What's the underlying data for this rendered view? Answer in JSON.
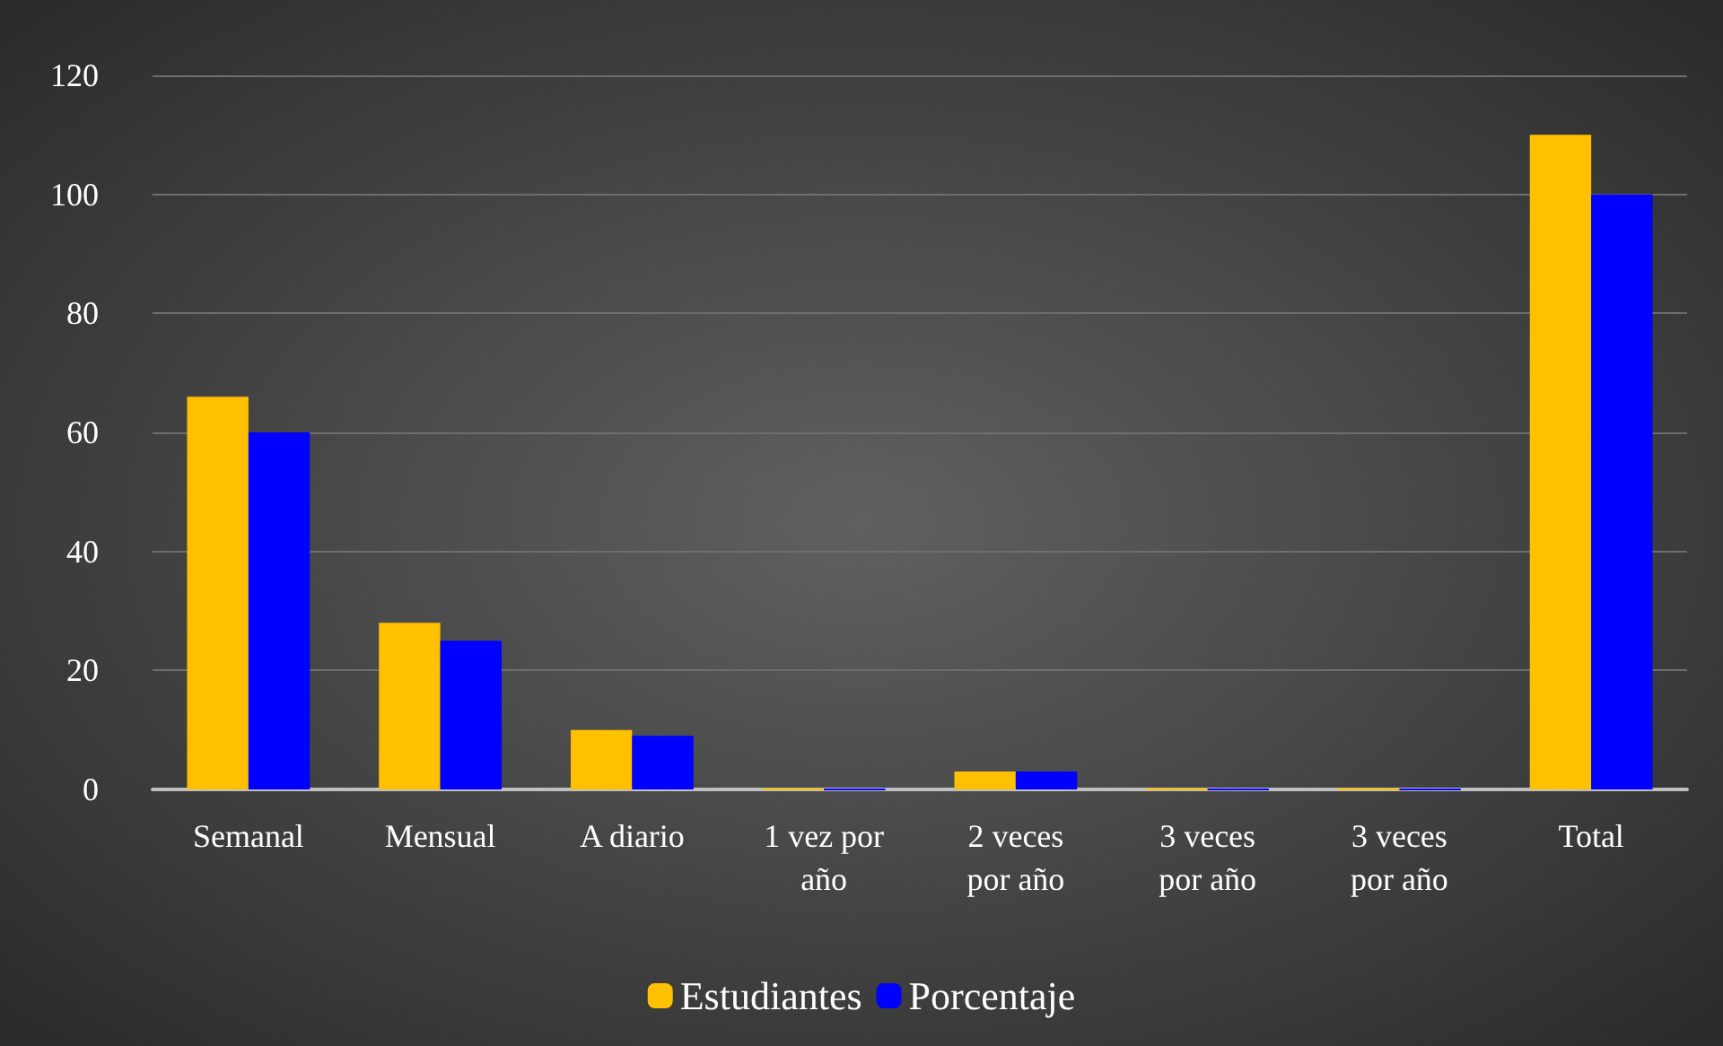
{
  "chart_data": {
    "type": "bar",
    "categories": [
      "Semanal",
      "Mensual",
      "A diario",
      "1 vez por\naño",
      "2 veces\npor año",
      "3 veces\npor año",
      "3 veces\npor año",
      "Total"
    ],
    "series": [
      {
        "name": "Estudiantes",
        "color": "#ffc000",
        "values": [
          66,
          28,
          10,
          0,
          3,
          0,
          0,
          110
        ]
      },
      {
        "name": "Porcentaje",
        "color": "#0000ff",
        "values": [
          60,
          25,
          9,
          0,
          3,
          0,
          0,
          100
        ]
      }
    ],
    "ylim": [
      0,
      120
    ],
    "yticks": [
      0,
      20,
      40,
      60,
      80,
      100,
      120
    ],
    "grid": "y",
    "legend": "bottom"
  }
}
